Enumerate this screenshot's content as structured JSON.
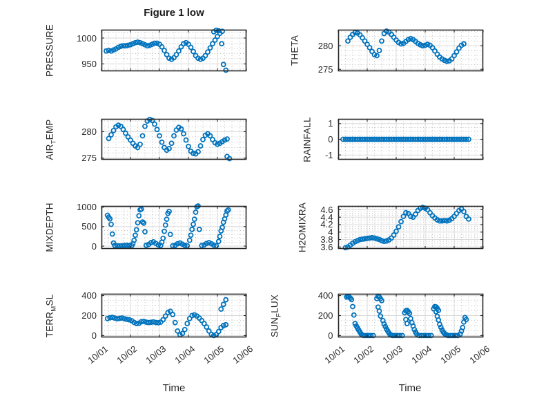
{
  "figure": {
    "title": "Figure 1 low"
  },
  "x_axis": {
    "label": "Time",
    "lim": [
      0,
      120
    ],
    "tick_hours": [
      0,
      24,
      48,
      72,
      96,
      120
    ],
    "tick_labels": [
      "10/01",
      "10/02",
      "10/03",
      "10/04",
      "10/05",
      "10/06"
    ],
    "minor_step_hours": 6
  },
  "colors": {
    "marker": "#0072BD",
    "axes": "#262626",
    "grid_major": "#d9d9d9",
    "grid_minor": "#b5b5b5",
    "text": "#262626"
  },
  "chart_data": [
    {
      "name": "PRESSURE",
      "type": "scatter",
      "ylabel": {
        "pre": "PRESSURE",
        "sub": "",
        "post": ""
      },
      "ylim": [
        936,
        1016
      ],
      "ytick_values": [
        950,
        1000
      ],
      "ytick_labels": [
        "950",
        "1000"
      ],
      "y_minor_step": 10,
      "x": [
        4,
        6,
        8,
        10,
        12,
        14,
        16,
        18,
        20,
        22,
        24,
        26,
        28,
        30,
        32,
        34,
        36,
        38,
        40,
        42,
        44,
        46,
        48,
        50,
        52,
        54,
        56,
        58,
        60,
        62,
        64,
        66,
        68,
        70,
        72,
        74,
        76,
        78,
        80,
        82,
        84,
        86,
        88,
        90,
        92,
        94,
        96,
        98,
        100,
        93,
        95,
        97,
        99.5,
        101,
        103
      ],
      "y": [
        975,
        976,
        975,
        977,
        979,
        982,
        984,
        985,
        985,
        986,
        987,
        989,
        991,
        992,
        991,
        989,
        987,
        985,
        986,
        988,
        990,
        990,
        988,
        983,
        976,
        968,
        961,
        959,
        962,
        968,
        975,
        983,
        989,
        991,
        988,
        982,
        974,
        966,
        961,
        959,
        961,
        966,
        973,
        981,
        989,
        996,
        1003,
        1009,
        1013,
        1012,
        1015,
        1014,
        989,
        949,
        938
      ]
    },
    {
      "name": "THETA",
      "type": "scatter",
      "ylabel": {
        "pre": "THETA",
        "sub": "",
        "post": ""
      },
      "ylim": [
        274.6,
        283.4
      ],
      "ytick_values": [
        275,
        280
      ],
      "ytick_labels": [
        "275",
        "280"
      ],
      "y_minor_step": 1,
      "x": [
        8,
        10,
        12,
        14,
        16,
        18,
        20,
        22,
        24,
        26,
        28,
        30,
        32,
        34,
        36,
        38,
        40,
        42,
        44,
        46,
        48,
        50,
        52,
        54,
        56,
        58,
        60,
        62,
        64,
        66,
        68,
        70,
        72,
        74,
        76,
        78,
        80,
        82,
        84,
        86,
        88,
        90,
        92,
        94,
        96,
        98,
        100,
        102,
        104
      ],
      "y": [
        281.0,
        281.8,
        282.4,
        282.8,
        282.7,
        282.3,
        281.7,
        281.0,
        280.3,
        279.6,
        278.8,
        278.1,
        277.9,
        279.0,
        281.0,
        282.6,
        283.1,
        282.9,
        282.4,
        281.8,
        281.2,
        280.7,
        280.4,
        280.5,
        280.9,
        281.3,
        281.5,
        281.3,
        280.9,
        280.5,
        280.2,
        280.0,
        280.1,
        280.3,
        280.1,
        279.6,
        278.9,
        278.2,
        277.6,
        277.2,
        276.9,
        276.7,
        276.8,
        277.2,
        277.9,
        278.7,
        279.5,
        280.1,
        280.4
      ]
    },
    {
      "name": "AIR_TEMP",
      "type": "scatter",
      "ylabel": {
        "pre": "AIR",
        "sub": "T",
        "post": "EMP"
      },
      "ylim": [
        274.7,
        282.4
      ],
      "ytick_values": [
        275,
        280
      ],
      "ytick_labels": [
        "275",
        "280"
      ],
      "y_minor_step": 1,
      "x": [
        6,
        8,
        10,
        12,
        14,
        16,
        18,
        20,
        22,
        24,
        26,
        28,
        30,
        32,
        34,
        36,
        38,
        40,
        42,
        44,
        46,
        48,
        50,
        52,
        54,
        56,
        58,
        60,
        62,
        64,
        66,
        68,
        70,
        72,
        74,
        76,
        78,
        80,
        82,
        84,
        86,
        88,
        90,
        92,
        94,
        96,
        98,
        100,
        102,
        104,
        104,
        106
      ],
      "y": [
        278.7,
        279.4,
        280.2,
        280.9,
        281.2,
        281.0,
        280.4,
        279.7,
        279.0,
        278.4,
        277.8,
        277.3,
        277.0,
        277.6,
        279.2,
        281.0,
        282.0,
        282.3,
        282.1,
        281.4,
        280.4,
        279.2,
        278.0,
        277.0,
        276.5,
        276.8,
        277.8,
        279.2,
        280.3,
        280.8,
        280.5,
        279.6,
        278.4,
        277.2,
        276.3,
        275.9,
        275.8,
        276.2,
        277.3,
        278.5,
        279.3,
        279.6,
        279.2,
        278.5,
        277.9,
        277.6,
        277.8,
        278.1,
        278.4,
        278.6,
        275.3,
        274.9
      ]
    },
    {
      "name": "RAINFALL",
      "type": "scatter",
      "ylabel": {
        "pre": "RAINFALL",
        "sub": "",
        "post": ""
      },
      "ylim": [
        -1.3,
        1.3
      ],
      "ytick_values": [
        -1,
        0,
        1
      ],
      "ytick_labels": [
        "-1",
        "0",
        "1"
      ],
      "y_minor_step": 0.25,
      "x": [
        4,
        6,
        8,
        10,
        12,
        14,
        16,
        18,
        20,
        22,
        24,
        26,
        28,
        30,
        32,
        34,
        36,
        38,
        40,
        42,
        44,
        46,
        48,
        50,
        52,
        54,
        56,
        58,
        60,
        62,
        64,
        66,
        68,
        70,
        72,
        74,
        76,
        78,
        80,
        82,
        84,
        86,
        88,
        90,
        92,
        94,
        96,
        98,
        100,
        102,
        104,
        106,
        108
      ],
      "y": [
        0,
        0,
        0,
        0,
        0,
        0,
        0,
        0,
        0,
        0,
        0,
        0,
        0,
        0,
        0,
        0,
        0,
        0,
        0,
        0,
        0,
        0,
        0,
        0,
        0,
        0,
        0,
        0,
        0,
        0,
        0,
        0,
        0,
        0,
        0,
        0,
        0,
        0,
        0,
        0,
        0,
        0,
        0,
        0,
        0,
        0,
        0,
        0,
        0,
        0,
        0,
        0,
        0
      ]
    },
    {
      "name": "MIXDEPTH",
      "type": "scatter",
      "ylabel": {
        "pre": "MIXDEPTH",
        "sub": "",
        "post": ""
      },
      "ylim": [
        -70,
        1030
      ],
      "ytick_values": [
        0,
        500,
        1000
      ],
      "ytick_labels": [
        "0",
        "500",
        "1000"
      ],
      "y_minor_step": 100,
      "x": [
        5,
        6,
        7,
        8,
        9,
        10,
        11,
        13,
        15,
        17,
        19,
        21,
        23,
        25,
        26,
        27,
        28,
        29,
        30,
        31,
        32,
        33,
        34,
        35,
        36,
        37,
        39,
        41,
        43,
        45,
        47,
        49,
        50,
        51,
        52,
        53,
        54,
        55,
        56,
        57,
        59,
        61,
        63,
        65,
        67,
        69,
        71,
        73,
        74,
        75,
        76,
        77,
        78,
        79,
        80,
        81,
        83,
        85,
        87,
        89,
        91,
        93,
        95,
        97,
        98,
        99,
        100,
        101,
        102,
        103,
        104,
        105
      ],
      "y": [
        790,
        740,
        700,
        560,
        310,
        80,
        15,
        10,
        5,
        10,
        15,
        20,
        15,
        10,
        60,
        150,
        280,
        420,
        600,
        780,
        930,
        950,
        620,
        590,
        370,
        20,
        40,
        90,
        110,
        70,
        30,
        15,
        100,
        200,
        380,
        540,
        690,
        840,
        890,
        300,
        10,
        20,
        60,
        80,
        50,
        20,
        10,
        150,
        280,
        430,
        560,
        690,
        870,
        1010,
        1030,
        430,
        15,
        30,
        70,
        90,
        60,
        25,
        10,
        120,
        250,
        390,
        480,
        610,
        700,
        800,
        900,
        930
      ]
    },
    {
      "name": "H2OMIXRA",
      "type": "scatter",
      "ylabel": {
        "pre": "H2OMIXRA",
        "sub": "",
        "post": ""
      },
      "ylim": [
        3.55,
        4.7
      ],
      "ytick_values": [
        3.6,
        3.8,
        4,
        4.2,
        4.4,
        4.6
      ],
      "ytick_labels": [
        "3.6",
        "3.8",
        "4",
        "4.2",
        "4.4",
        "4.6"
      ],
      "y_minor_step": 0.05,
      "x": [
        6,
        8,
        10,
        12,
        14,
        16,
        18,
        20,
        22,
        24,
        26,
        28,
        30,
        32,
        34,
        36,
        38,
        40,
        42,
        44,
        46,
        48,
        50,
        52,
        54,
        56,
        58,
        60,
        62,
        64,
        66,
        68,
        70,
        72,
        74,
        76,
        78,
        80,
        82,
        84,
        86,
        88,
        90,
        92,
        94,
        96,
        98,
        100,
        102,
        104,
        106,
        108
      ],
      "y": [
        3.58,
        3.6,
        3.65,
        3.7,
        3.74,
        3.77,
        3.8,
        3.81,
        3.82,
        3.83,
        3.84,
        3.85,
        3.84,
        3.82,
        3.8,
        3.77,
        3.75,
        3.76,
        3.79,
        3.84,
        3.92,
        4.02,
        4.14,
        4.28,
        4.42,
        4.52,
        4.5,
        4.42,
        4.4,
        4.48,
        4.58,
        4.64,
        4.66,
        4.64,
        4.6,
        4.52,
        4.44,
        4.38,
        4.33,
        4.3,
        4.3,
        4.31,
        4.3,
        4.32,
        4.36,
        4.42,
        4.5,
        4.58,
        4.62,
        4.55,
        4.42,
        4.35
      ]
    },
    {
      "name": "TERR_MSL",
      "type": "scatter",
      "ylabel": {
        "pre": "TERR",
        "sub": "M",
        "post": "SL"
      },
      "ylim": [
        -18,
        418
      ],
      "ytick_values": [
        0,
        200,
        400
      ],
      "ytick_labels": [
        "0",
        "200",
        "400"
      ],
      "y_minor_step": 50,
      "x": [
        5,
        7,
        9,
        11,
        13,
        15,
        17,
        19,
        21,
        23,
        25,
        27,
        29,
        31,
        33,
        35,
        37,
        39,
        41,
        43,
        45,
        47,
        49,
        51,
        53,
        55,
        57,
        59,
        61,
        63,
        65,
        67,
        69,
        71,
        73,
        75,
        77,
        79,
        81,
        83,
        85,
        87,
        89,
        91,
        93,
        95,
        97,
        99,
        101,
        103,
        99,
        101,
        103
      ],
      "y": [
        170,
        178,
        182,
        175,
        168,
        172,
        176,
        168,
        162,
        158,
        148,
        132,
        120,
        122,
        138,
        142,
        134,
        130,
        133,
        136,
        131,
        128,
        134,
        158,
        195,
        230,
        243,
        210,
        130,
        45,
        8,
        20,
        60,
        120,
        170,
        200,
        207,
        195,
        175,
        150,
        120,
        85,
        45,
        12,
        0,
        10,
        40,
        80,
        100,
        108,
        265,
        312,
        358
      ]
    },
    {
      "name": "SUN_FLUX",
      "type": "scatter",
      "ylabel": {
        "pre": "SUN",
        "sub": "F",
        "post": "LUX"
      },
      "ylim": [
        -18,
        418
      ],
      "ytick_values": [
        0,
        200,
        400
      ],
      "ytick_labels": [
        "0",
        "200",
        "400"
      ],
      "y_minor_step": 50,
      "x": [
        7,
        8,
        9,
        10,
        11,
        12,
        13,
        14,
        15,
        16,
        17,
        18,
        19,
        20,
        21,
        23,
        25,
        27,
        29,
        32,
        33,
        34,
        35,
        36,
        33,
        34,
        35,
        37,
        38,
        39,
        40,
        41,
        42,
        43,
        44,
        45,
        47,
        49,
        51,
        53,
        55,
        56,
        57,
        58,
        59,
        56,
        57,
        60,
        61,
        62,
        63,
        64,
        65,
        67,
        69,
        71,
        73,
        75,
        77,
        79,
        80,
        81,
        82,
        83,
        81,
        82,
        83,
        84,
        85,
        86,
        87,
        88,
        89,
        90,
        91,
        93,
        95,
        97,
        99,
        101,
        102,
        103,
        104,
        105,
        106
      ],
      "y": [
        385,
        392,
        388,
        375,
        360,
        290,
        205,
        120,
        95,
        75,
        55,
        35,
        15,
        5,
        0,
        0,
        0,
        0,
        0,
        370,
        392,
        385,
        368,
        350,
        285,
        245,
        195,
        150,
        115,
        90,
        65,
        45,
        25,
        10,
        5,
        0,
        0,
        0,
        0,
        0,
        228,
        247,
        252,
        240,
        222,
        160,
        120,
        170,
        130,
        95,
        60,
        35,
        15,
        0,
        0,
        0,
        0,
        0,
        0,
        268,
        290,
        286,
        272,
        252,
        238,
        193,
        155,
        112,
        82,
        55,
        35,
        20,
        10,
        5,
        0,
        0,
        0,
        0,
        0,
        15,
        45,
        80,
        135,
        180,
        160
      ]
    }
  ]
}
